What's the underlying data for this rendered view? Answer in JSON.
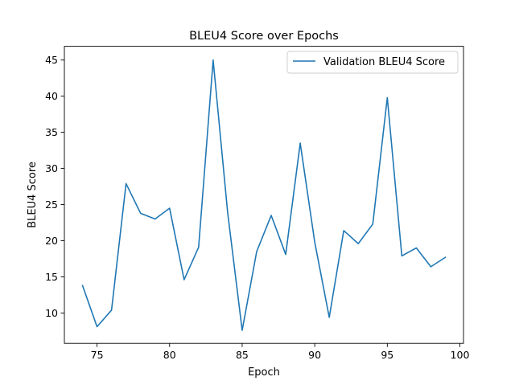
{
  "chart_data": {
    "type": "line",
    "title": "BLEU4 Score over Epochs",
    "xlabel": "Epoch",
    "ylabel": "BLEU4 Score",
    "xlim": [
      72.75,
      100.25
    ],
    "ylim": [
      5.8,
      46.9
    ],
    "x_ticks": [
      75,
      80,
      85,
      90,
      95,
      100
    ],
    "y_ticks": [
      10,
      15,
      20,
      25,
      30,
      35,
      40,
      45
    ],
    "grid": false,
    "legend_position": "top-right",
    "series": [
      {
        "name": "Validation BLEU4 Score",
        "color": "#1f77b4",
        "x": [
          74,
          75,
          76,
          77,
          78,
          79,
          80,
          81,
          82,
          83,
          84,
          85,
          86,
          87,
          88,
          89,
          90,
          91,
          92,
          93,
          94,
          95,
          96,
          97,
          98,
          99
        ],
        "y": [
          13.8,
          8.1,
          10.4,
          27.9,
          23.8,
          23.0,
          24.5,
          14.6,
          19.1,
          45.0,
          23.9,
          7.6,
          18.5,
          23.5,
          18.1,
          33.5,
          19.8,
          9.4,
          21.4,
          19.6,
          22.3,
          39.8,
          17.9,
          19.0,
          16.4,
          17.7
        ]
      }
    ]
  }
}
